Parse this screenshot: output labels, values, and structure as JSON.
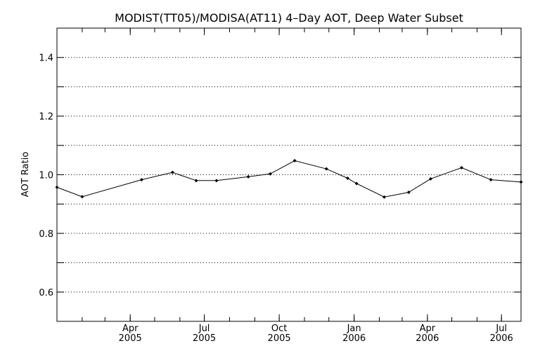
{
  "chart_data": {
    "type": "line",
    "title": "MODIST(TT05)/MODISA(AT11) 4–Day AOT, Deep Water Subset",
    "ylabel": "AOT Ratio",
    "xlabel": "",
    "xlim": [
      "2005-01-01",
      "2006-07-25"
    ],
    "ylim": [
      0.5,
      1.5
    ],
    "y_ticks": [
      0.6,
      0.8,
      1.0,
      1.2,
      1.4
    ],
    "y_tick_labels": [
      "0.6",
      "0.8",
      "1.0",
      "1.2",
      "1.4"
    ],
    "y_gridlines": [
      0.6,
      0.7,
      0.8,
      0.9,
      1.0,
      1.1,
      1.2,
      1.3,
      1.4
    ],
    "grid": "horizontal dotted",
    "x_ticks": [
      {
        "date": "2005-04-01",
        "month": "Apr",
        "year": "2005"
      },
      {
        "date": "2005-07-01",
        "month": "Jul",
        "year": "2005"
      },
      {
        "date": "2005-10-01",
        "month": "Oct",
        "year": "2005"
      },
      {
        "date": "2006-01-01",
        "month": "Jan",
        "year": "2006"
      },
      {
        "date": "2006-04-01",
        "month": "Apr",
        "year": "2006"
      },
      {
        "date": "2006-07-01",
        "month": "Jul",
        "year": "2006"
      }
    ],
    "series": [
      {
        "points": [
          {
            "x": "2005-01-01",
            "y": 0.957
          },
          {
            "x": "2005-02-01",
            "y": 0.925
          },
          {
            "x": "2005-04-15",
            "y": 0.983
          },
          {
            "x": "2005-05-23",
            "y": 1.008
          },
          {
            "x": "2005-06-21",
            "y": 0.98
          },
          {
            "x": "2005-07-16",
            "y": 0.98
          },
          {
            "x": "2005-08-24",
            "y": 0.993
          },
          {
            "x": "2005-09-20",
            "y": 1.003
          },
          {
            "x": "2005-10-20",
            "y": 1.048
          },
          {
            "x": "2005-11-28",
            "y": 1.02
          },
          {
            "x": "2005-12-24",
            "y": 0.988
          },
          {
            "x": "2006-01-04",
            "y": 0.97
          },
          {
            "x": "2006-02-07",
            "y": 0.924
          },
          {
            "x": "2006-03-09",
            "y": 0.94
          },
          {
            "x": "2006-04-05",
            "y": 0.986
          },
          {
            "x": "2006-05-13",
            "y": 1.024
          },
          {
            "x": "2006-06-18",
            "y": 0.983
          },
          {
            "x": "2006-07-25",
            "y": 0.975
          }
        ]
      }
    ]
  }
}
